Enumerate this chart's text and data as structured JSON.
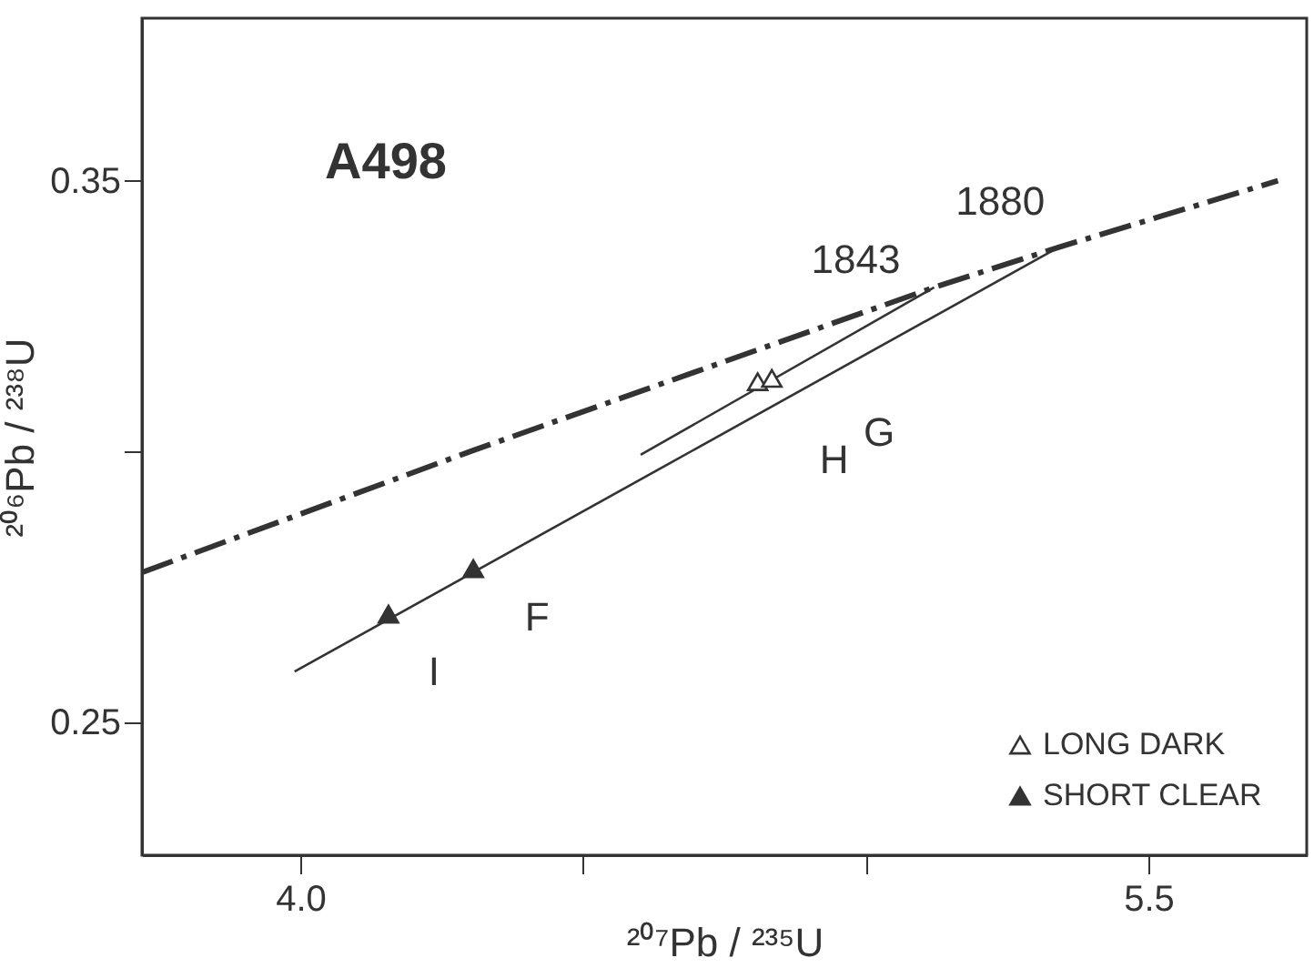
{
  "chart_data": {
    "type": "scatter",
    "xlabel": "²⁰⁷Pb / ²³⁵U",
    "ylabel": "²⁰⁶Pb / ²³⁸U",
    "xlim": [
      3.72,
      5.78
    ],
    "ylim": [
      0.2255,
      0.38
    ],
    "xticks": [
      {
        "value": 4,
        "label": "4.0"
      },
      {
        "value": 4.5,
        "label": null
      },
      {
        "value": 5,
        "label": null
      },
      5.5
    ],
    "yticks": [
      0.25,
      {
        "value": 0.3,
        "label": null
      },
      0.35
    ],
    "grid": false,
    "legend": "bottom right",
    "series": [
      {
        "type": "line",
        "line_style": "dashed",
        "marker": "none",
        "color": "#333333",
        "x": [
          3.72,
          4.3,
          5.121,
          5.341,
          5.729
        ],
        "values": [
          0.2777,
          0.3,
          0.3303,
          0.3377,
          0.35
        ]
      },
      {
        "type": "line",
        "line_style": "solid",
        "marker": "none",
        "color": "#333333",
        "x": [
          5.121,
          4.602
        ],
        "values": [
          0.3303,
          0.2994
        ]
      },
      {
        "type": "line",
        "line_style": "solid",
        "marker": "none",
        "color": "#333333",
        "x": [
          5.341,
          3.99
        ],
        "values": [
          0.3377,
          0.2594
        ]
      },
      {
        "name": "LONG DARK",
        "marker": "triangle",
        "color": "#333333",
        "x": [
          4.809,
          4.834
        ],
        "values": [
          0.3129,
          0.3135
        ]
      },
      {
        "name": "SHORT CLEAR",
        "marker": "triangle",
        "color": "#333333",
        "x": [
          4.156,
          4.306
        ],
        "values": [
          0.27,
          0.2784
        ]
      }
    ],
    "annotations": [
      "A498",
      {
        "text": "1843",
        "x": 5.121,
        "y": 0.3303
      },
      {
        "text": "1880",
        "x": 5.341,
        "y": 0.3377
      },
      {
        "text": "H",
        "x": 4.809,
        "y": 0.3129
      },
      {
        "text": "G",
        "x": 4.834,
        "y": 0.3135
      },
      {
        "text": "F",
        "x": 4.306,
        "y": 0.2784
      },
      {
        "text": "I",
        "x": 4.156,
        "y": 0.27
      }
    ]
  }
}
